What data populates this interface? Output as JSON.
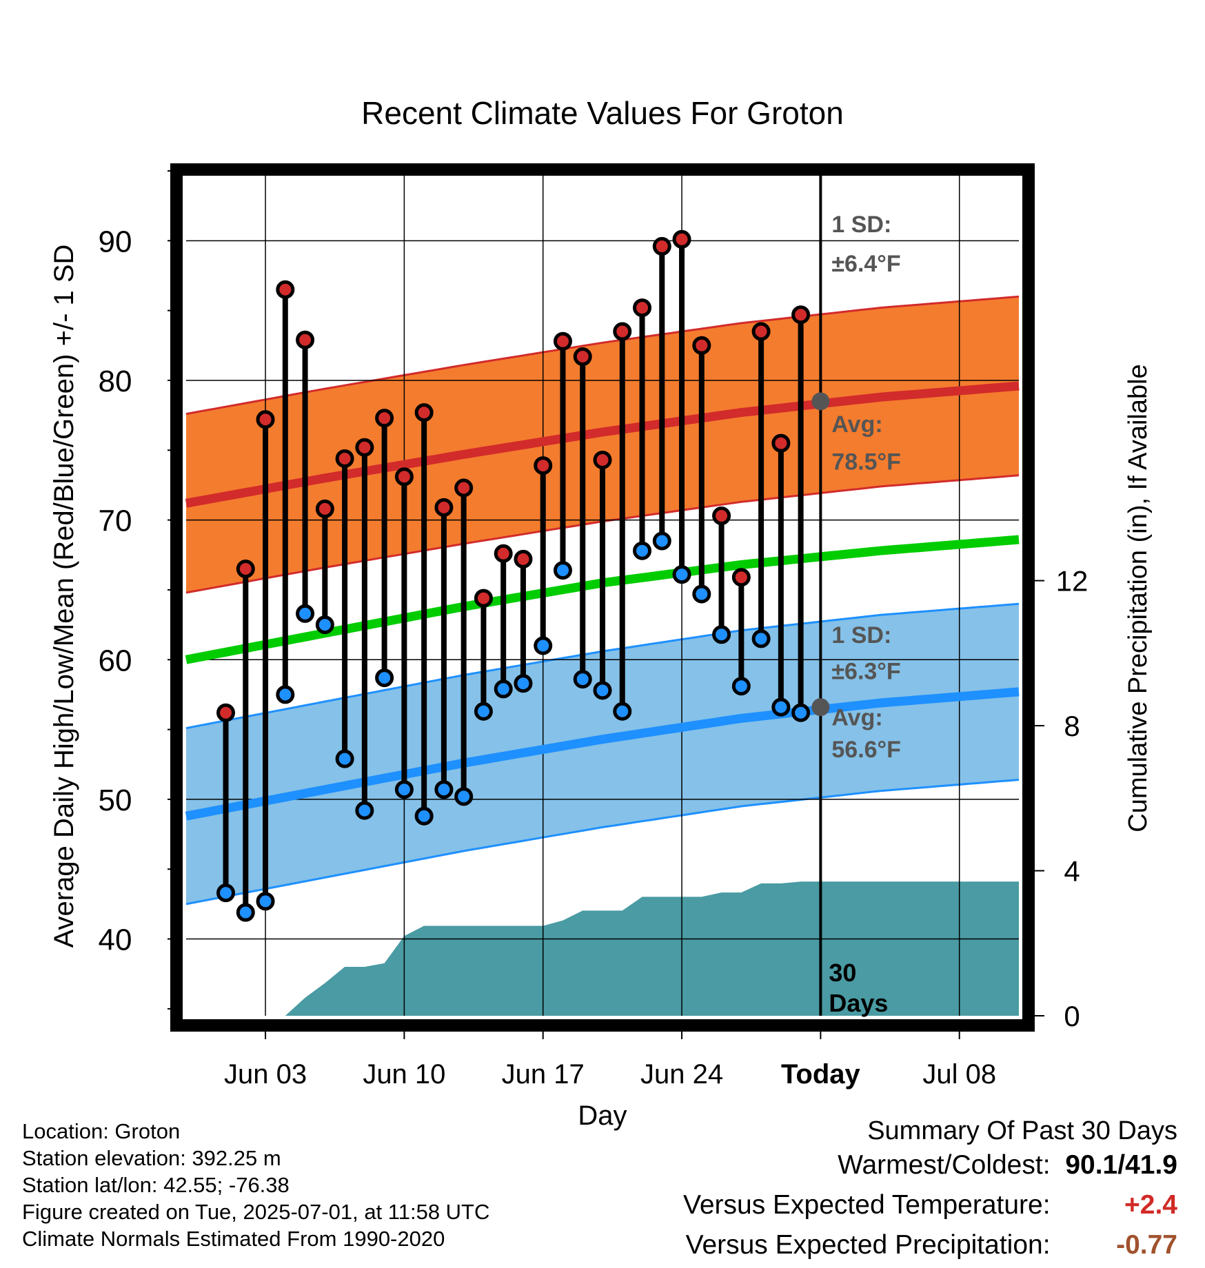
{
  "chart_data": {
    "type": "line",
    "title": "Recent Climate Values For Groton",
    "xlabel": "Day",
    "ylabel": "Average Daily High/Low/Mean (Red/Blue/Green) +/- 1 SD",
    "y2label": "Cumulative Precipitation (in), If Available",
    "x_ticks": [
      "Jun 03",
      "Jun 10",
      "Jun 17",
      "Jun 24",
      "Today",
      "Jul 08"
    ],
    "y_ticks": [
      40,
      50,
      60,
      70,
      80,
      90
    ],
    "y2_ticks": [
      0,
      4,
      8,
      12
    ],
    "ylim": [
      34.5,
      95
    ],
    "y2lim": [
      0,
      23.3
    ],
    "xlim": [
      "2025-05-30",
      "2025-07-11"
    ],
    "grid": true,
    "dates": [
      "2025-06-01",
      "2025-06-02",
      "2025-06-03",
      "2025-06-04",
      "2025-06-05",
      "2025-06-06",
      "2025-06-07",
      "2025-06-08",
      "2025-06-09",
      "2025-06-10",
      "2025-06-11",
      "2025-06-12",
      "2025-06-13",
      "2025-06-14",
      "2025-06-15",
      "2025-06-16",
      "2025-06-17",
      "2025-06-18",
      "2025-06-19",
      "2025-06-20",
      "2025-06-21",
      "2025-06-22",
      "2025-06-23",
      "2025-06-24",
      "2025-06-25",
      "2025-06-26",
      "2025-06-27",
      "2025-06-28",
      "2025-06-29",
      "2025-06-30"
    ],
    "daily_high": [
      56.2,
      66.5,
      77.2,
      86.5,
      82.9,
      70.8,
      74.4,
      75.2,
      77.3,
      73.1,
      77.7,
      70.9,
      72.3,
      64.4,
      67.6,
      67.2,
      73.9,
      82.8,
      81.7,
      74.3,
      83.5,
      85.2,
      89.6,
      90.1,
      82.5,
      70.3,
      65.9,
      83.5,
      75.5,
      84.7
    ],
    "daily_low": [
      43.3,
      41.9,
      42.7,
      57.5,
      63.3,
      62.5,
      52.9,
      49.2,
      58.7,
      50.7,
      48.8,
      50.7,
      50.2,
      56.3,
      57.9,
      58.3,
      61.0,
      66.4,
      58.6,
      57.8,
      56.3,
      67.8,
      68.5,
      66.1,
      64.7,
      61.8,
      58.1,
      61.5,
      56.6,
      56.2
    ],
    "normals": {
      "dates": [
        "2025-05-30",
        "2025-06-06",
        "2025-06-13",
        "2025-06-20",
        "2025-06-27",
        "2025-07-04",
        "2025-07-11"
      ],
      "avg_high": [
        71.2,
        73.0,
        74.7,
        76.3,
        77.7,
        78.8,
        79.6
      ],
      "high_sd": 6.4,
      "avg_low": [
        48.8,
        50.7,
        52.6,
        54.3,
        55.8,
        56.9,
        57.7
      ],
      "low_sd": 6.3,
      "avg_mean": [
        60.0,
        61.9,
        63.8,
        65.5,
        66.8,
        67.8,
        68.6
      ]
    },
    "cumulative_precip": {
      "dates": [
        "2025-06-01",
        "2025-06-02",
        "2025-06-03",
        "2025-06-04",
        "2025-06-05",
        "2025-06-06",
        "2025-06-07",
        "2025-06-08",
        "2025-06-09",
        "2025-06-10",
        "2025-06-11",
        "2025-06-12",
        "2025-06-13",
        "2025-06-14",
        "2025-06-15",
        "2025-06-16",
        "2025-06-17",
        "2025-06-18",
        "2025-06-19",
        "2025-06-20",
        "2025-06-21",
        "2025-06-22",
        "2025-06-23",
        "2025-06-24",
        "2025-06-25",
        "2025-06-26",
        "2025-06-27",
        "2025-06-28",
        "2025-06-29",
        "2025-06-30",
        "2025-07-01",
        "2025-07-11"
      ],
      "values": [
        0.0,
        0.0,
        0.0,
        0.0,
        0.5,
        0.9,
        1.35,
        1.35,
        1.45,
        2.2,
        2.48,
        2.48,
        2.48,
        2.48,
        2.48,
        2.48,
        2.48,
        2.63,
        2.9,
        2.9,
        2.9,
        3.28,
        3.28,
        3.28,
        3.28,
        3.4,
        3.4,
        3.65,
        3.65,
        3.7,
        3.7,
        3.7
      ]
    },
    "annotations": {
      "high_sd": {
        "label": "1 SD:",
        "value": "±6.4°F"
      },
      "high_avg": {
        "label": "Avg:",
        "value": "78.5°F",
        "marker": 78.5
      },
      "low_sd": {
        "label": "1 SD:",
        "value": "±6.3°F"
      },
      "low_avg": {
        "label": "Avg:",
        "value": "56.6°F",
        "marker": 56.6
      },
      "today_line": {
        "line1": "30",
        "line2": "Days",
        "date": "2025-07-01"
      }
    },
    "colors": {
      "high_band": "#f47c2e",
      "high_line": "#d22b2b",
      "low_band": "#85c1e8",
      "low_line": "#1e90ff",
      "mean_line": "#00cc00",
      "precip": "#4a9ba3",
      "high_dot": "#d22b2b",
      "low_dot": "#1e90ff",
      "annotation_text": "#555555"
    }
  },
  "info": {
    "location": "Location: Groton",
    "elevation": "Station elevation: 392.25 m",
    "latlon": "Station lat/lon: 42.55; -76.38",
    "created": "Figure created on Tue, 2025-07-01, at 11:58 UTC",
    "normals": "Climate Normals Estimated From 1990-2020"
  },
  "summary": {
    "title": "Summary Of Past 30 Days",
    "warm_label": "Warmest/Coldest:",
    "warm_value": "90.1/41.9",
    "temp_label": "Versus Expected Temperature:",
    "temp_value": "+2.4",
    "prcp_label": "Versus Expected Precipitation:",
    "prcp_value": "-0.77"
  }
}
